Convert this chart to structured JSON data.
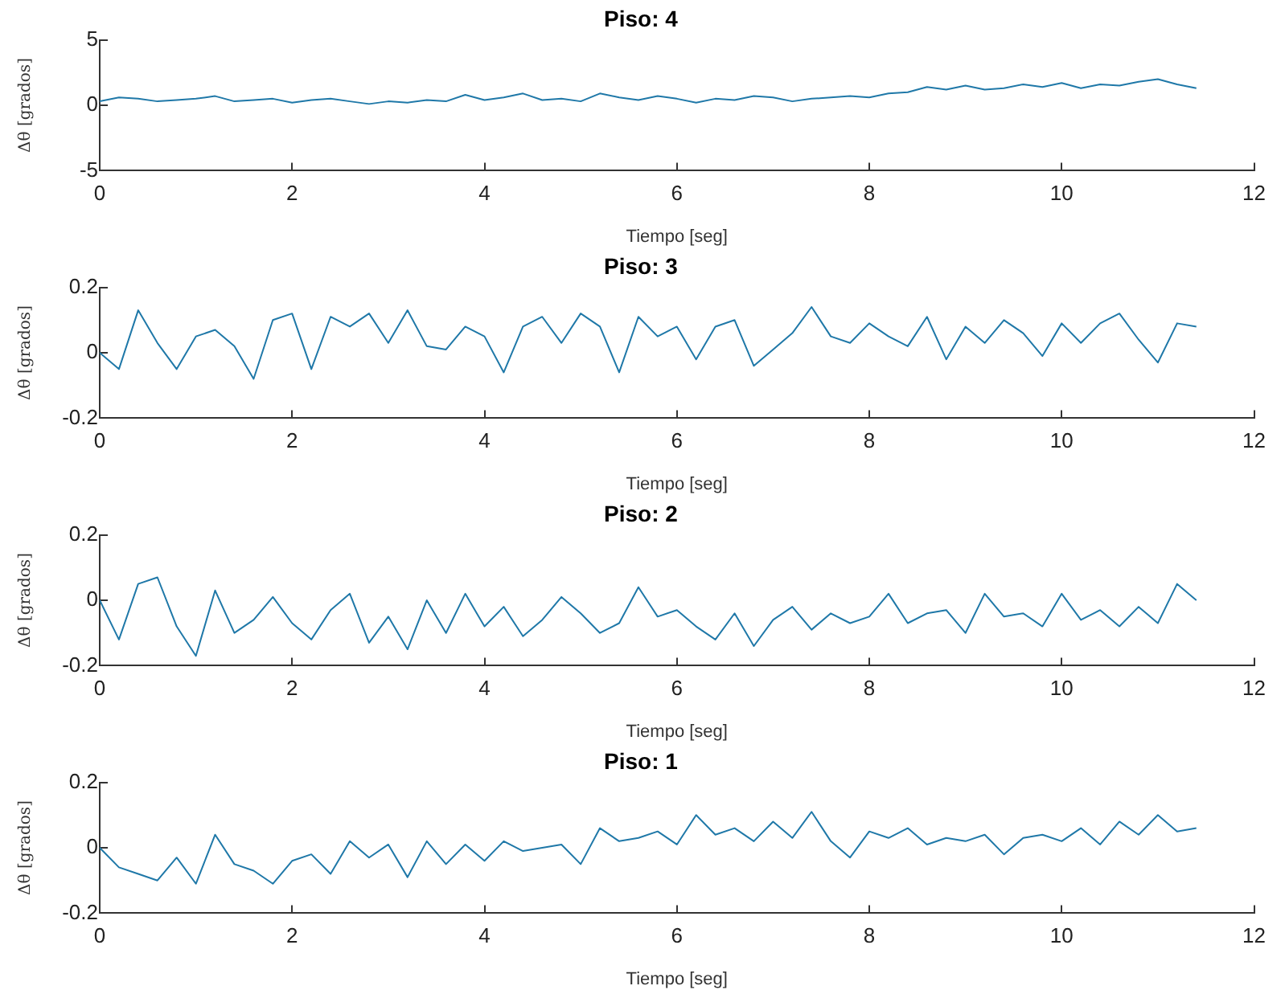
{
  "chart_data": [
    {
      "type": "line",
      "title": "Piso: 4",
      "xlabel": "Tiempo [seg]",
      "ylabel": "Δθ [grados]",
      "xlim": [
        0,
        12
      ],
      "xticks": [
        0,
        2,
        4,
        6,
        8,
        10,
        12
      ],
      "ylim": [
        -5,
        5
      ],
      "yticks": [
        -5,
        0,
        5
      ],
      "grid": false,
      "legend": false,
      "marker": "none",
      "line_style": "solid",
      "x": [
        0,
        0.2,
        0.4,
        0.6,
        0.8,
        1,
        1.2,
        1.4,
        1.6,
        1.8,
        2,
        2.2,
        2.4,
        2.6,
        2.8,
        3,
        3.2,
        3.4,
        3.6,
        3.8,
        4,
        4.2,
        4.4,
        4.6,
        4.8,
        5,
        5.2,
        5.4,
        5.6,
        5.8,
        6,
        6.2,
        6.4,
        6.6,
        6.8,
        7,
        7.2,
        7.4,
        7.6,
        7.8,
        8,
        8.2,
        8.4,
        8.6,
        8.8,
        9,
        9.2,
        9.4,
        9.6,
        9.8,
        10,
        10.2,
        10.4,
        10.6,
        10.8,
        11,
        11.2,
        11.4
      ],
      "series": [
        {
          "color": "#1f78a8",
          "values": [
            0.3,
            0.6,
            0.5,
            0.3,
            0.4,
            0.5,
            0.7,
            0.3,
            0.4,
            0.5,
            0.2,
            0.4,
            0.5,
            0.3,
            0.1,
            0.3,
            0.2,
            0.4,
            0.3,
            0.8,
            0.4,
            0.6,
            0.9,
            0.4,
            0.5,
            0.3,
            0.9,
            0.6,
            0.4,
            0.7,
            0.5,
            0.2,
            0.5,
            0.4,
            0.7,
            0.6,
            0.3,
            0.5,
            0.6,
            0.7,
            0.6,
            0.9,
            1.0,
            1.4,
            1.2,
            1.5,
            1.2,
            1.3,
            1.6,
            1.4,
            1.7,
            1.3,
            1.6,
            1.5,
            1.8,
            2.0,
            1.6,
            1.3
          ]
        }
      ]
    },
    {
      "type": "line",
      "title": "Piso: 3",
      "xlabel": "Tiempo [seg]",
      "ylabel": "Δθ [grados]",
      "xlim": [
        0,
        12
      ],
      "xticks": [
        0,
        2,
        4,
        6,
        8,
        10,
        12
      ],
      "ylim": [
        -0.2,
        0.2
      ],
      "yticks": [
        -0.2,
        0,
        0.2
      ],
      "grid": false,
      "legend": false,
      "marker": "none",
      "line_style": "solid",
      "x": [
        0,
        0.2,
        0.4,
        0.6,
        0.8,
        1,
        1.2,
        1.4,
        1.6,
        1.8,
        2,
        2.2,
        2.4,
        2.6,
        2.8,
        3,
        3.2,
        3.4,
        3.6,
        3.8,
        4,
        4.2,
        4.4,
        4.6,
        4.8,
        5,
        5.2,
        5.4,
        5.6,
        5.8,
        6,
        6.2,
        6.4,
        6.6,
        6.8,
        7,
        7.2,
        7.4,
        7.6,
        7.8,
        8,
        8.2,
        8.4,
        8.6,
        8.8,
        9,
        9.2,
        9.4,
        9.6,
        9.8,
        10,
        10.2,
        10.4,
        10.6,
        10.8,
        11,
        11.2,
        11.4
      ],
      "series": [
        {
          "color": "#1f78a8",
          "values": [
            0,
            -0.05,
            0.13,
            0.03,
            -0.05,
            0.05,
            0.07,
            0.02,
            -0.08,
            0.1,
            0.12,
            -0.05,
            0.11,
            0.08,
            0.12,
            0.03,
            0.13,
            0.02,
            0.01,
            0.08,
            0.05,
            -0.06,
            0.08,
            0.11,
            0.03,
            0.12,
            0.08,
            -0.06,
            0.11,
            0.05,
            0.08,
            -0.02,
            0.08,
            0.1,
            -0.04,
            0.01,
            0.06,
            0.14,
            0.05,
            0.03,
            0.09,
            0.05,
            0.02,
            0.11,
            -0.02,
            0.08,
            0.03,
            0.1,
            0.06,
            -0.01,
            0.09,
            0.03,
            0.09,
            0.12,
            0.04,
            -0.03,
            0.09,
            0.08
          ]
        }
      ]
    },
    {
      "type": "line",
      "title": "Piso: 2",
      "xlabel": "Tiempo [seg]",
      "ylabel": "Δθ [grados]",
      "xlim": [
        0,
        12
      ],
      "xticks": [
        0,
        2,
        4,
        6,
        8,
        10,
        12
      ],
      "ylim": [
        -0.2,
        0.2
      ],
      "yticks": [
        -0.2,
        0,
        0.2
      ],
      "grid": false,
      "legend": false,
      "marker": "none",
      "line_style": "solid",
      "x": [
        0,
        0.2,
        0.4,
        0.6,
        0.8,
        1,
        1.2,
        1.4,
        1.6,
        1.8,
        2,
        2.2,
        2.4,
        2.6,
        2.8,
        3,
        3.2,
        3.4,
        3.6,
        3.8,
        4,
        4.2,
        4.4,
        4.6,
        4.8,
        5,
        5.2,
        5.4,
        5.6,
        5.8,
        6,
        6.2,
        6.4,
        6.6,
        6.8,
        7,
        7.2,
        7.4,
        7.6,
        7.8,
        8,
        8.2,
        8.4,
        8.6,
        8.8,
        9,
        9.2,
        9.4,
        9.6,
        9.8,
        10,
        10.2,
        10.4,
        10.6,
        10.8,
        11,
        11.2,
        11.4
      ],
      "series": [
        {
          "color": "#1f78a8",
          "values": [
            0,
            -0.12,
            0.05,
            0.07,
            -0.08,
            -0.17,
            0.03,
            -0.1,
            -0.06,
            0.01,
            -0.07,
            -0.12,
            -0.03,
            0.02,
            -0.13,
            -0.05,
            -0.15,
            0,
            -0.1,
            0.02,
            -0.08,
            -0.02,
            -0.11,
            -0.06,
            0.01,
            -0.04,
            -0.1,
            -0.07,
            0.04,
            -0.05,
            -0.03,
            -0.08,
            -0.12,
            -0.04,
            -0.14,
            -0.06,
            -0.02,
            -0.09,
            -0.04,
            -0.07,
            -0.05,
            0.02,
            -0.07,
            -0.04,
            -0.03,
            -0.1,
            0.02,
            -0.05,
            -0.04,
            -0.08,
            0.02,
            -0.06,
            -0.03,
            -0.08,
            -0.02,
            -0.07,
            0.05,
            0
          ]
        }
      ]
    },
    {
      "type": "line",
      "title": "Piso: 1",
      "xlabel": "Tiempo [seg]",
      "ylabel": "Δθ [grados]",
      "xlim": [
        0,
        12
      ],
      "xticks": [
        0,
        2,
        4,
        6,
        8,
        10,
        12
      ],
      "ylim": [
        -0.2,
        0.2
      ],
      "yticks": [
        -0.2,
        0,
        0.2
      ],
      "grid": false,
      "legend": false,
      "marker": "none",
      "line_style": "solid",
      "x": [
        0,
        0.2,
        0.4,
        0.6,
        0.8,
        1,
        1.2,
        1.4,
        1.6,
        1.8,
        2,
        2.2,
        2.4,
        2.6,
        2.8,
        3,
        3.2,
        3.4,
        3.6,
        3.8,
        4,
        4.2,
        4.4,
        4.6,
        4.8,
        5,
        5.2,
        5.4,
        5.6,
        5.8,
        6,
        6.2,
        6.4,
        6.6,
        6.8,
        7,
        7.2,
        7.4,
        7.6,
        7.8,
        8,
        8.2,
        8.4,
        8.6,
        8.8,
        9,
        9.2,
        9.4,
        9.6,
        9.8,
        10,
        10.2,
        10.4,
        10.6,
        10.8,
        11,
        11.2,
        11.4
      ],
      "series": [
        {
          "color": "#1f78a8",
          "values": [
            0,
            -0.06,
            -0.08,
            -0.1,
            -0.03,
            -0.11,
            0.04,
            -0.05,
            -0.07,
            -0.11,
            -0.04,
            -0.02,
            -0.08,
            0.02,
            -0.03,
            0.01,
            -0.09,
            0.02,
            -0.05,
            0.01,
            -0.04,
            0.02,
            -0.01,
            0,
            0.01,
            -0.05,
            0.06,
            0.02,
            0.03,
            0.05,
            0.01,
            0.1,
            0.04,
            0.06,
            0.02,
            0.08,
            0.03,
            0.11,
            0.02,
            -0.03,
            0.05,
            0.03,
            0.06,
            0.01,
            0.03,
            0.02,
            0.04,
            -0.02,
            0.03,
            0.04,
            0.02,
            0.06,
            0.01,
            0.08,
            0.04,
            0.1,
            0.05,
            0.06
          ]
        }
      ]
    }
  ]
}
